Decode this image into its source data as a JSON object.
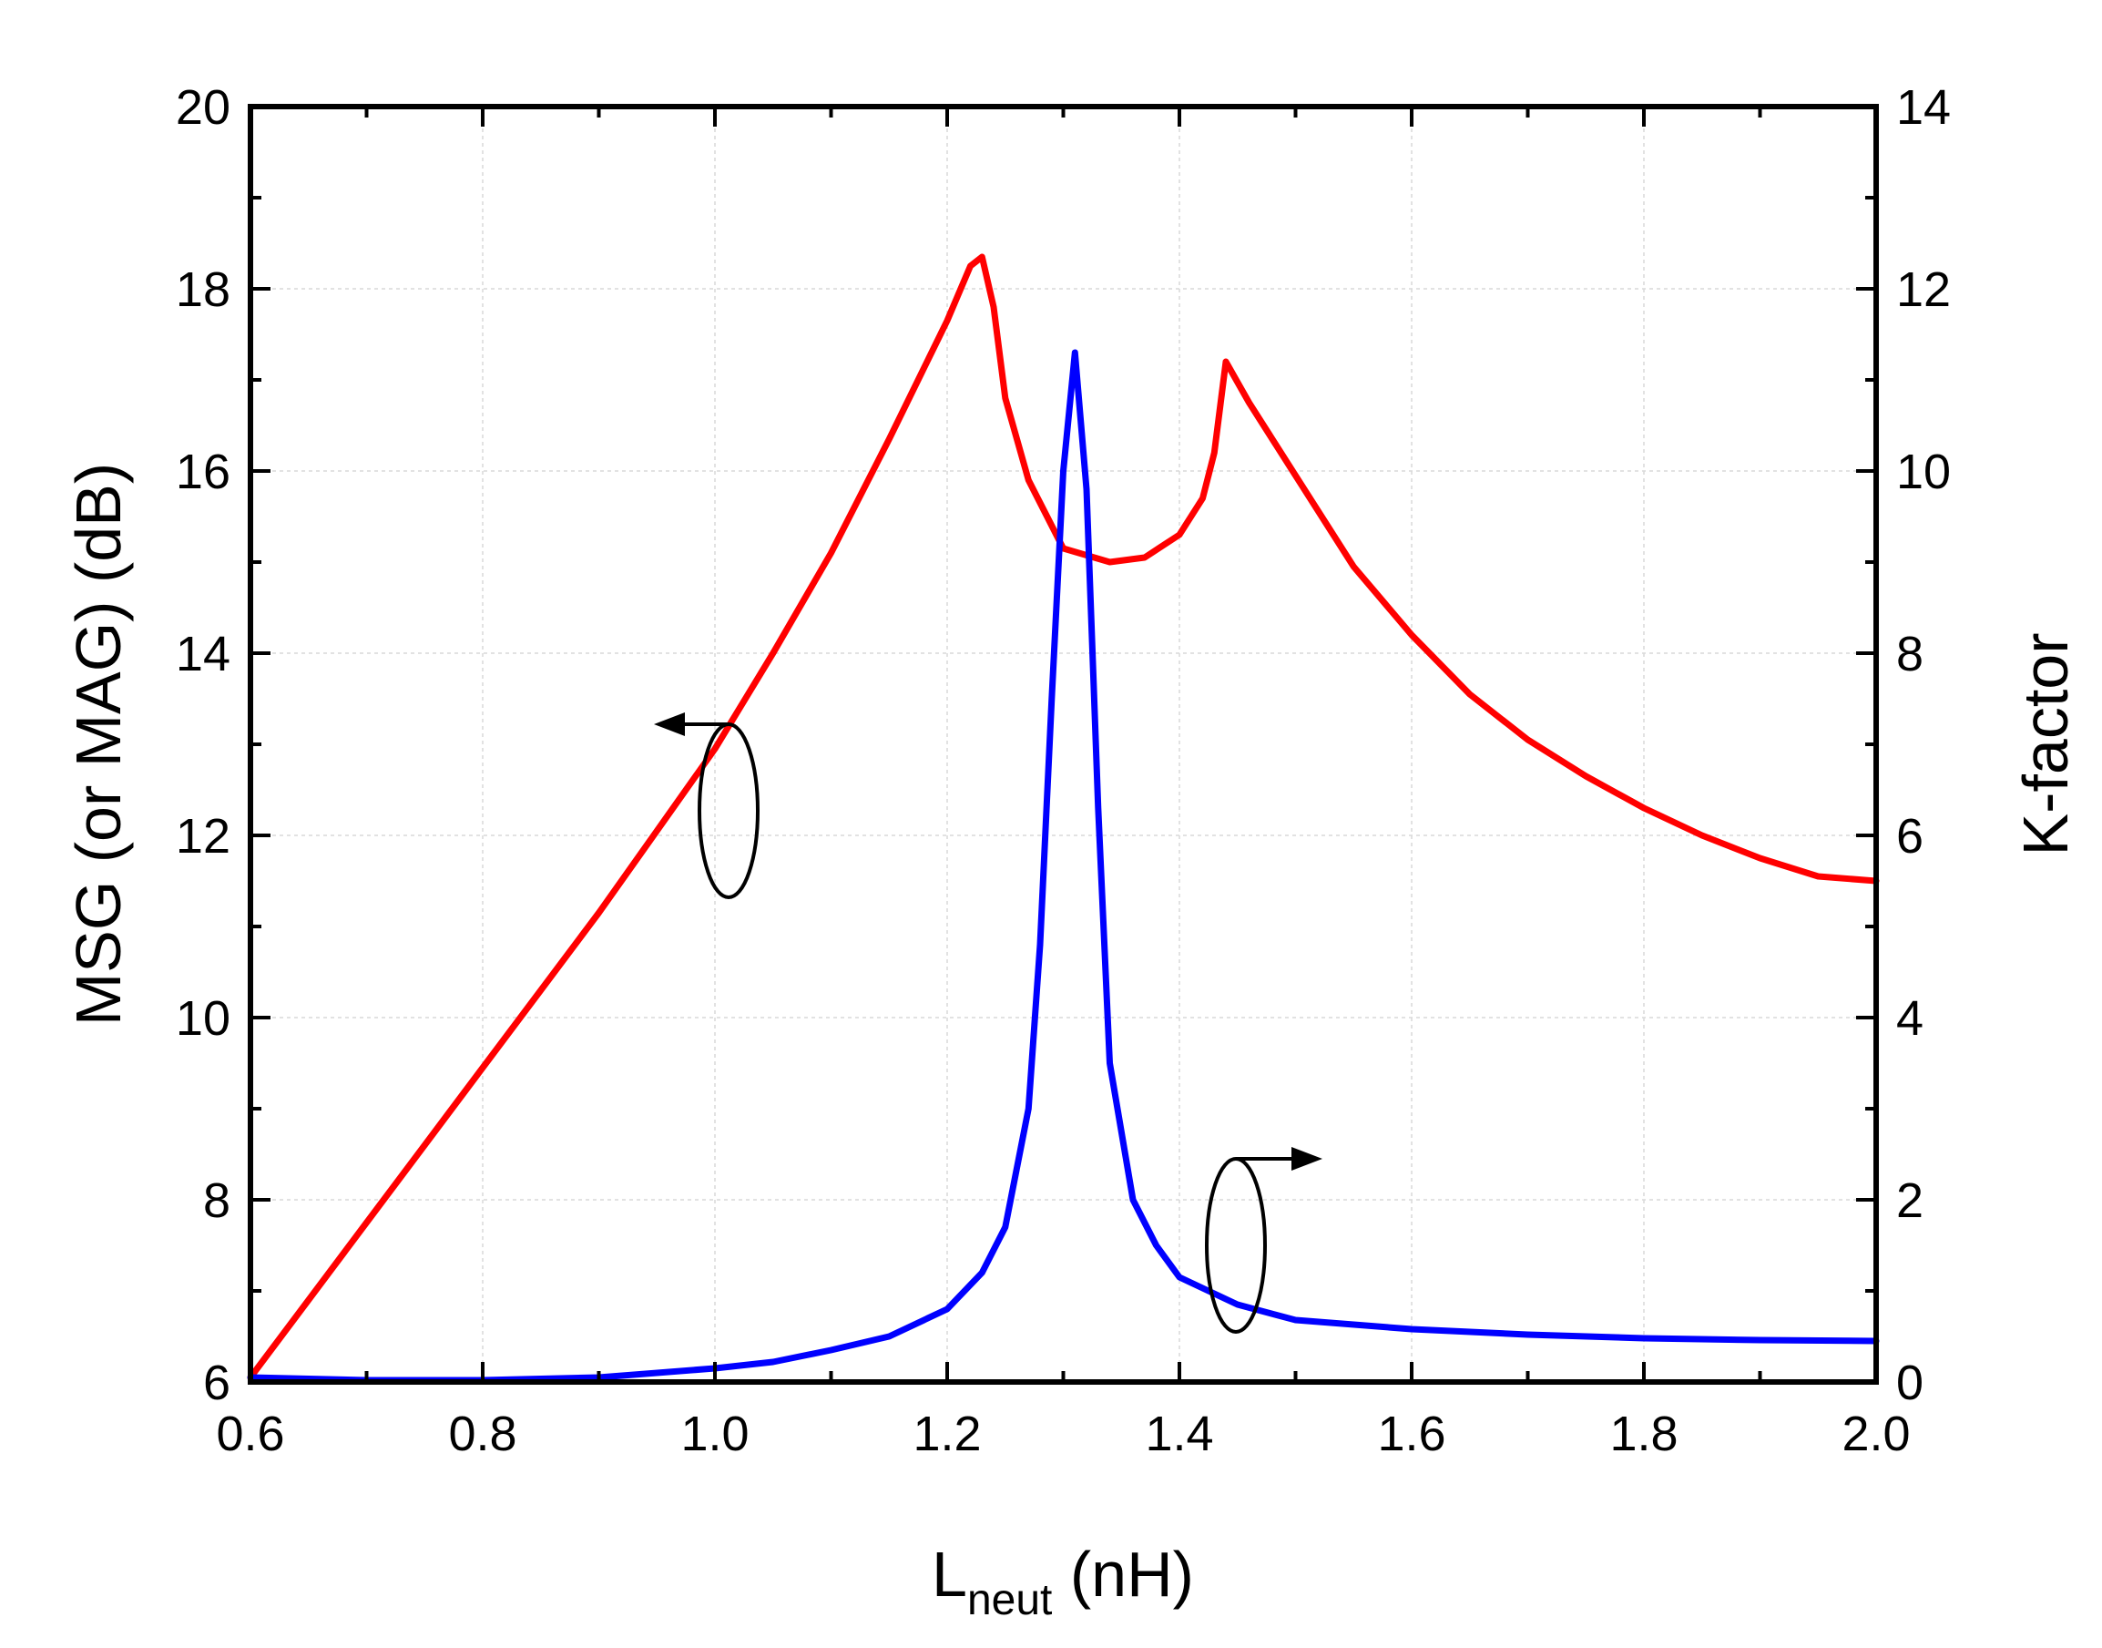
{
  "chart_data": {
    "type": "line",
    "title": "",
    "xlabel": {
      "main": "L",
      "sub": "neut",
      "unit": " (nH)"
    },
    "ylabel_left": "MSG (or MAG) (dB)",
    "ylabel_right": "K-factor",
    "xlim": [
      0.6,
      2.0
    ],
    "ylim_left": [
      6,
      20
    ],
    "ylim_right": [
      0,
      14
    ],
    "grid": true,
    "x_ticks": [
      "0.6",
      "0.8",
      "1.0",
      "1.2",
      "1.4",
      "1.6",
      "1.8",
      "2.0"
    ],
    "y_left_ticks": [
      "6",
      "8",
      "10",
      "12",
      "14",
      "16",
      "18",
      "20"
    ],
    "y_right_ticks": [
      "0",
      "2",
      "4",
      "6",
      "8",
      "10",
      "12",
      "14"
    ],
    "annotations": [
      {
        "series": "MSG (or MAG)",
        "points_to": "left axis"
      },
      {
        "series": "K-factor",
        "points_to": "right axis"
      }
    ],
    "series": [
      {
        "name": "MSG (or MAG)",
        "axis": "left",
        "color": "#ff0000",
        "x": [
          0.6,
          0.65,
          0.7,
          0.75,
          0.8,
          0.85,
          0.9,
          0.95,
          1.0,
          1.05,
          1.1,
          1.15,
          1.2,
          1.22,
          1.23,
          1.24,
          1.25,
          1.27,
          1.3,
          1.34,
          1.37,
          1.4,
          1.42,
          1.43,
          1.44,
          1.46,
          1.5,
          1.55,
          1.6,
          1.65,
          1.7,
          1.75,
          1.8,
          1.85,
          1.9,
          1.95,
          2.0
        ],
        "y": [
          6.05,
          6.9,
          7.75,
          8.6,
          9.45,
          10.3,
          11.15,
          12.05,
          12.95,
          14.0,
          15.1,
          16.35,
          17.65,
          18.25,
          18.35,
          17.8,
          16.8,
          15.9,
          15.15,
          15.0,
          15.05,
          15.3,
          15.7,
          16.2,
          17.2,
          16.75,
          15.95,
          14.95,
          14.2,
          13.55,
          13.05,
          12.65,
          12.3,
          12.0,
          11.75,
          11.55,
          11.5
        ]
      },
      {
        "name": "K-factor",
        "axis": "right",
        "color": "#0000ff",
        "x": [
          0.6,
          0.7,
          0.8,
          0.9,
          1.0,
          1.05,
          1.1,
          1.15,
          1.2,
          1.23,
          1.25,
          1.27,
          1.28,
          1.29,
          1.3,
          1.31,
          1.32,
          1.33,
          1.34,
          1.36,
          1.38,
          1.4,
          1.45,
          1.5,
          1.6,
          1.7,
          1.8,
          1.9,
          2.0
        ],
        "y": [
          0.05,
          0.02,
          0.02,
          0.05,
          0.15,
          0.22,
          0.35,
          0.5,
          0.8,
          1.2,
          1.7,
          3.0,
          4.8,
          7.5,
          10.0,
          11.3,
          9.8,
          6.3,
          3.5,
          2.0,
          1.5,
          1.15,
          0.85,
          0.68,
          0.58,
          0.52,
          0.48,
          0.46,
          0.45
        ]
      }
    ]
  }
}
